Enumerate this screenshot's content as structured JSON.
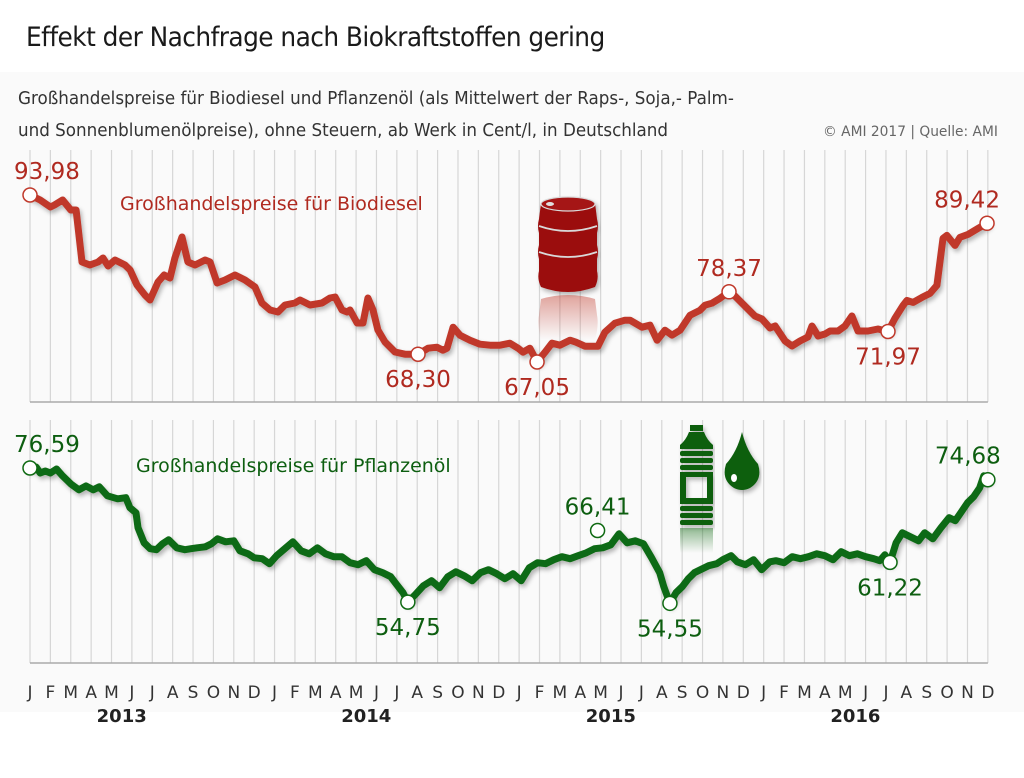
{
  "header": {
    "title": "Effekt der Nachfrage nach Biokraftstoffen gering",
    "subtitle_line1": "Großhandelspreise für Biodiesel und Pflanzenöl (als Mittelwert der Raps-, Soja,- Palm-",
    "subtitle_line2": "und Sonnenblumenölpreise), ohne Steuern, ab Werk in Cent/l, in Deutschland",
    "credit": "© AMI 2017 | Quelle: AMI"
  },
  "colors": {
    "biodiesel": "#c0392b",
    "biodiesel_label": "#b02a20",
    "biodiesel_icon": "#9b0a0a",
    "pflanzenoel": "#0f6a12",
    "pflanzenoel_label": "#0d5e10",
    "grid": "#d6d6d6",
    "axis": "#aaaaaa",
    "axis_text": "#333333"
  },
  "chart_data": [
    {
      "type": "line",
      "title": "Großhandelspreise für Biodiesel",
      "unit": "Cent/l",
      "x_unit": "month index (0 = Jan 2013, 47 = Dec 2016)",
      "ylim": [
        63,
        95
      ],
      "icon": "oil-barrel-icon",
      "points": [
        [
          0.0,
          93.98
        ],
        [
          0.5,
          93.17
        ],
        [
          1.0,
          92.04
        ],
        [
          1.2,
          92.37
        ],
        [
          1.6,
          93.17
        ],
        [
          2.0,
          91.56
        ],
        [
          2.26,
          91.56
        ],
        [
          2.55,
          83.17
        ],
        [
          2.94,
          82.69
        ],
        [
          3.34,
          83.17
        ],
        [
          3.58,
          83.82
        ],
        [
          3.83,
          82.53
        ],
        [
          4.17,
          83.5
        ],
        [
          4.66,
          82.69
        ],
        [
          4.91,
          81.88
        ],
        [
          5.25,
          79.46
        ],
        [
          5.64,
          77.85
        ],
        [
          5.89,
          77.04
        ],
        [
          6.28,
          79.95
        ],
        [
          6.58,
          81.07
        ],
        [
          6.87,
          80.59
        ],
        [
          7.11,
          83.82
        ],
        [
          7.46,
          87.2
        ],
        [
          7.75,
          83.17
        ],
        [
          8.1,
          82.69
        ],
        [
          8.59,
          83.5
        ],
        [
          8.83,
          83.17
        ],
        [
          9.18,
          79.79
        ],
        [
          9.57,
          80.27
        ],
        [
          10.06,
          81.07
        ],
        [
          10.55,
          80.27
        ],
        [
          11.04,
          79.14
        ],
        [
          11.38,
          76.56
        ],
        [
          11.78,
          75.43
        ],
        [
          12.17,
          75.11
        ],
        [
          12.51,
          76.24
        ],
        [
          13.0,
          76.56
        ],
        [
          13.25,
          77.04
        ],
        [
          13.74,
          76.24
        ],
        [
          14.33,
          76.56
        ],
        [
          14.72,
          77.37
        ],
        [
          14.97,
          77.53
        ],
        [
          15.31,
          75.43
        ],
        [
          15.56,
          75.11
        ],
        [
          15.7,
          75.43
        ],
        [
          16.05,
          73.33
        ],
        [
          16.34,
          73.33
        ],
        [
          16.58,
          77.37
        ],
        [
          16.83,
          75.43
        ],
        [
          17.07,
          72.21
        ],
        [
          17.42,
          70.27
        ],
        [
          17.91,
          68.66
        ],
        [
          18.4,
          68.3
        ],
        [
          19.04,
          68.3
        ],
        [
          19.53,
          69.27
        ],
        [
          19.97,
          69.43
        ],
        [
          20.26,
          68.95
        ],
        [
          20.46,
          69.27
        ],
        [
          20.76,
          72.66
        ],
        [
          21.1,
          71.37
        ],
        [
          21.59,
          70.56
        ],
        [
          22.08,
          69.91
        ],
        [
          22.57,
          69.75
        ],
        [
          23.06,
          69.75
        ],
        [
          23.55,
          70.08
        ],
        [
          23.95,
          69.27
        ],
        [
          24.19,
          68.62
        ],
        [
          24.53,
          69.27
        ],
        [
          24.88,
          67.05
        ],
        [
          25.27,
          68.62
        ],
        [
          25.61,
          70.08
        ],
        [
          26.0,
          69.75
        ],
        [
          26.5,
          70.56
        ],
        [
          26.79,
          70.24
        ],
        [
          27.23,
          69.59
        ],
        [
          27.87,
          69.59
        ],
        [
          28.21,
          71.85
        ],
        [
          28.7,
          73.3
        ],
        [
          29.19,
          73.78
        ],
        [
          29.44,
          73.78
        ],
        [
          30.03,
          72.66
        ],
        [
          30.42,
          72.98
        ],
        [
          30.77,
          70.56
        ],
        [
          31.16,
          72.17
        ],
        [
          31.5,
          71.37
        ],
        [
          31.9,
          72.17
        ],
        [
          32.39,
          74.59
        ],
        [
          32.88,
          75.4
        ],
        [
          33.12,
          76.21
        ],
        [
          33.46,
          76.53
        ],
        [
          33.86,
          77.34
        ],
        [
          34.3,
          78.37
        ],
        [
          34.59,
          77.69
        ],
        [
          35.08,
          76.08
        ],
        [
          35.57,
          74.46
        ],
        [
          35.92,
          73.98
        ],
        [
          36.31,
          72.53
        ],
        [
          36.56,
          72.85
        ],
        [
          37.05,
          70.43
        ],
        [
          37.39,
          69.62
        ],
        [
          37.78,
          70.43
        ],
        [
          38.17,
          71.08
        ],
        [
          38.37,
          72.85
        ],
        [
          38.67,
          71.24
        ],
        [
          39.01,
          71.56
        ],
        [
          39.26,
          72.05
        ],
        [
          39.65,
          72.05
        ],
        [
          39.99,
          72.85
        ],
        [
          40.33,
          74.46
        ],
        [
          40.63,
          72.05
        ],
        [
          41.12,
          72.05
        ],
        [
          41.61,
          72.37
        ],
        [
          42.1,
          71.97
        ],
        [
          42.44,
          74.07
        ],
        [
          42.84,
          76.17
        ],
        [
          43.03,
          76.98
        ],
        [
          43.33,
          76.66
        ],
        [
          43.77,
          77.46
        ],
        [
          44.16,
          78.11
        ],
        [
          44.5,
          79.4
        ],
        [
          44.8,
          86.98
        ],
        [
          44.99,
          87.46
        ],
        [
          45.39,
          85.85
        ],
        [
          45.63,
          87.14
        ],
        [
          46.03,
          87.62
        ],
        [
          46.52,
          88.59
        ],
        [
          46.96,
          89.42
        ]
      ],
      "annotations": [
        {
          "label": "93,98",
          "x": 0.0,
          "value": 93.98,
          "position": "above"
        },
        {
          "label": "68,30",
          "x": 19.04,
          "value": 68.3,
          "position": "below"
        },
        {
          "label": "67,05",
          "x": 24.88,
          "value": 67.05,
          "position": "below"
        },
        {
          "label": "78,37",
          "x": 34.3,
          "value": 78.37,
          "position": "above"
        },
        {
          "label": "71,97",
          "x": 42.1,
          "value": 71.97,
          "position": "below"
        },
        {
          "label": "89,42",
          "x": 46.96,
          "value": 89.42,
          "position": "above"
        }
      ]
    },
    {
      "type": "line",
      "title": "Großhandelspreise für Pflanzenöl",
      "unit": "Cent/l",
      "x_unit": "month index (0 = Jan 2013, 47 = Dec 2016)",
      "ylim": [
        51,
        79
      ],
      "icon": "oil-bottle-and-drop-icon",
      "points": [
        [
          0.0,
          76.59
        ],
        [
          0.3,
          76.75
        ],
        [
          0.5,
          75.78
        ],
        [
          0.75,
          76.1
        ],
        [
          1.0,
          75.78
        ],
        [
          1.3,
          76.43
        ],
        [
          1.6,
          75.3
        ],
        [
          2.0,
          74.0
        ],
        [
          2.4,
          73.04
        ],
        [
          2.75,
          73.68
        ],
        [
          3.1,
          73.04
        ],
        [
          3.4,
          73.52
        ],
        [
          3.8,
          72.06
        ],
        [
          4.3,
          71.58
        ],
        [
          4.7,
          71.75
        ],
        [
          4.9,
          70.12
        ],
        [
          5.2,
          69.3
        ],
        [
          5.3,
          66.86
        ],
        [
          5.6,
          64.41
        ],
        [
          5.9,
          63.44
        ],
        [
          6.2,
          63.28
        ],
        [
          6.5,
          64.25
        ],
        [
          6.8,
          64.9
        ],
        [
          7.2,
          63.6
        ],
        [
          7.6,
          63.28
        ],
        [
          7.9,
          63.44
        ],
        [
          8.2,
          63.6
        ],
        [
          8.6,
          63.76
        ],
        [
          8.9,
          64.25
        ],
        [
          9.2,
          65.06
        ],
        [
          9.6,
          64.57
        ],
        [
          10.0,
          64.74
        ],
        [
          10.3,
          63.11
        ],
        [
          10.7,
          62.62
        ],
        [
          11.0,
          61.97
        ],
        [
          11.4,
          61.81
        ],
        [
          11.75,
          61.0
        ],
        [
          12.1,
          62.3
        ],
        [
          12.5,
          63.44
        ],
        [
          12.9,
          64.57
        ],
        [
          13.3,
          63.11
        ],
        [
          13.7,
          62.62
        ],
        [
          14.1,
          63.6
        ],
        [
          14.5,
          62.62
        ],
        [
          14.9,
          62.14
        ],
        [
          15.3,
          62.14
        ],
        [
          15.7,
          61.16
        ],
        [
          16.1,
          60.84
        ],
        [
          16.5,
          61.49
        ],
        [
          16.9,
          60.02
        ],
        [
          17.3,
          59.53
        ],
        [
          17.7,
          58.88
        ],
        [
          18.0,
          57.58
        ],
        [
          18.3,
          56.28
        ],
        [
          18.54,
          54.75
        ],
        [
          18.9,
          55.95
        ],
        [
          19.3,
          57.41
        ],
        [
          19.7,
          58.23
        ],
        [
          20.1,
          57.09
        ],
        [
          20.5,
          58.88
        ],
        [
          20.9,
          59.69
        ],
        [
          21.3,
          59.04
        ],
        [
          21.7,
          58.23
        ],
        [
          22.1,
          59.53
        ],
        [
          22.5,
          60.02
        ],
        [
          22.9,
          59.37
        ],
        [
          23.3,
          58.56
        ],
        [
          23.7,
          59.37
        ],
        [
          24.1,
          58.23
        ],
        [
          24.5,
          60.35
        ],
        [
          24.9,
          61.16
        ],
        [
          25.3,
          61.0
        ],
        [
          25.7,
          61.65
        ],
        [
          26.1,
          62.14
        ],
        [
          26.5,
          61.81
        ],
        [
          26.9,
          62.3
        ],
        [
          27.3,
          62.78
        ],
        [
          27.7,
          63.44
        ],
        [
          28.1,
          63.6
        ],
        [
          28.5,
          64.09
        ],
        [
          28.9,
          65.87
        ],
        [
          29.3,
          64.41
        ],
        [
          29.7,
          64.74
        ],
        [
          30.1,
          64.25
        ],
        [
          30.5,
          61.97
        ],
        [
          30.9,
          59.53
        ],
        [
          31.1,
          57.25
        ],
        [
          31.4,
          54.55
        ],
        [
          31.7,
          56.28
        ],
        [
          32.0,
          57.25
        ],
        [
          32.3,
          58.56
        ],
        [
          32.6,
          59.53
        ],
        [
          32.9,
          60.02
        ],
        [
          33.3,
          60.67
        ],
        [
          33.7,
          61.0
        ],
        [
          34.0,
          61.65
        ],
        [
          34.4,
          62.3
        ],
        [
          34.7,
          61.32
        ],
        [
          35.1,
          60.84
        ],
        [
          35.5,
          61.65
        ],
        [
          35.9,
          60.02
        ],
        [
          36.3,
          61.32
        ],
        [
          36.6,
          61.49
        ],
        [
          37.0,
          61.16
        ],
        [
          37.4,
          62.14
        ],
        [
          37.8,
          61.81
        ],
        [
          38.2,
          62.14
        ],
        [
          38.6,
          62.62
        ],
        [
          39.0,
          62.3
        ],
        [
          39.4,
          61.65
        ],
        [
          39.8,
          62.95
        ],
        [
          40.2,
          62.3
        ],
        [
          40.6,
          62.62
        ],
        [
          41.0,
          62.14
        ],
        [
          41.4,
          61.81
        ],
        [
          41.7,
          61.49
        ],
        [
          41.95,
          62.46
        ],
        [
          42.2,
          61.22
        ],
        [
          42.5,
          64.41
        ],
        [
          42.8,
          66.04
        ],
        [
          43.2,
          65.39
        ],
        [
          43.6,
          64.74
        ],
        [
          43.9,
          66.04
        ],
        [
          44.3,
          65.06
        ],
        [
          44.7,
          66.86
        ],
        [
          45.1,
          68.49
        ],
        [
          45.4,
          68.0
        ],
        [
          45.7,
          69.46
        ],
        [
          46.0,
          70.92
        ],
        [
          46.3,
          71.9
        ],
        [
          46.6,
          73.37
        ],
        [
          46.8,
          75.32
        ],
        [
          47.0,
          74.68
        ]
      ],
      "annotations": [
        {
          "label": "76,59",
          "x": 0.0,
          "value": 76.59,
          "position": "above"
        },
        {
          "label": "54,75",
          "x": 18.54,
          "value": 54.75,
          "position": "below"
        },
        {
          "label": "66,41",
          "x": 27.85,
          "value": 66.41,
          "position": "above"
        },
        {
          "label": "54,55",
          "x": 31.4,
          "value": 54.55,
          "position": "below"
        },
        {
          "label": "61,22",
          "x": 42.2,
          "value": 61.22,
          "position": "below"
        },
        {
          "label": "74,68",
          "x": 47.0,
          "value": 74.68,
          "position": "above"
        }
      ]
    }
  ],
  "x_axis": {
    "month_labels": [
      "J",
      "F",
      "M",
      "A",
      "M",
      "J",
      "J",
      "A",
      "S",
      "O",
      "N",
      "D",
      "J",
      "F",
      "M",
      "A",
      "M",
      "J",
      "J",
      "A",
      "S",
      "O",
      "N",
      "D",
      "J",
      "F",
      "M",
      "A",
      "M",
      "J",
      "J",
      "A",
      "S",
      "O",
      "N",
      "D",
      "J",
      "F",
      "M",
      "A",
      "M",
      "J",
      "J",
      "A",
      "S",
      "O",
      "N",
      "D"
    ],
    "year_labels": [
      "2013",
      "2014",
      "2015",
      "2016"
    ]
  },
  "grid": true
}
